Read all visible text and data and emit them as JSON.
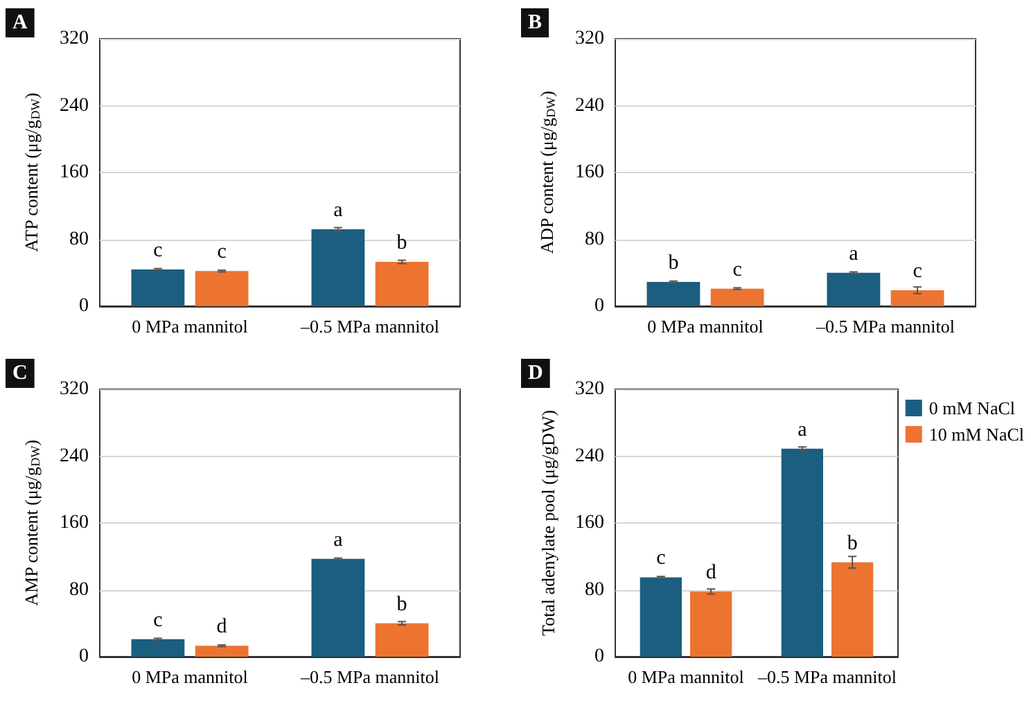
{
  "chart_data": [
    {
      "type": "bar",
      "title": "A",
      "ylabel": "ATP content (μg/g$_{DW}$)",
      "categories": [
        "0 MPa mannitol",
        "–0.5 MPa mannitol"
      ],
      "ylim": [
        0,
        320
      ],
      "yticks": [
        0,
        80,
        160,
        240,
        320
      ],
      "grid": "y",
      "legend": false,
      "series": [
        {
          "color": "#1b5e7f",
          "values": [
            44,
            92
          ],
          "errors": [
            1,
            2
          ],
          "value_labels": [
            "c",
            "a"
          ]
        },
        {
          "color": "#ec7430",
          "values": [
            42,
            53
          ],
          "errors": [
            1,
            2
          ],
          "value_labels": [
            "c",
            "b"
          ]
        }
      ]
    },
    {
      "type": "bar",
      "title": "B",
      "ylabel": "ADP content (μg/g$_{DW}$)",
      "categories": [
        "0 MPa mannitol",
        "–0.5 MPa mannitol"
      ],
      "ylim": [
        0,
        320
      ],
      "yticks": [
        0,
        80,
        160,
        240,
        320
      ],
      "grid": "y",
      "legend": false,
      "series": [
        {
          "color": "#1b5e7f",
          "values": [
            29,
            40
          ],
          "errors": [
            1,
            1
          ],
          "value_labels": [
            "b",
            "a"
          ]
        },
        {
          "color": "#ec7430",
          "values": [
            21,
            19
          ],
          "errors": [
            1,
            4
          ],
          "value_labels": [
            "c",
            "c"
          ]
        }
      ]
    },
    {
      "type": "bar",
      "title": "C",
      "ylabel": "AMP content (μg/g$_{DW}$)",
      "categories": [
        "0 MPa mannitol",
        "–0.5 MPa mannitol"
      ],
      "ylim": [
        0,
        320
      ],
      "yticks": [
        0,
        80,
        160,
        240,
        320
      ],
      "grid": "y",
      "legend": false,
      "series": [
        {
          "color": "#1b5e7f",
          "values": [
            21,
            117
          ],
          "errors": [
            1,
            1
          ],
          "value_labels": [
            "c",
            "a"
          ]
        },
        {
          "color": "#ec7430",
          "values": [
            13,
            40
          ],
          "errors": [
            1,
            2
          ],
          "value_labels": [
            "d",
            "b"
          ]
        }
      ]
    },
    {
      "type": "bar",
      "title": "D",
      "ylabel": "Total adenylate pool (μg/gDW)",
      "categories": [
        "0 MPa mannitol",
        "–0.5 MPa mannitol"
      ],
      "ylim": [
        0,
        320
      ],
      "yticks": [
        0,
        80,
        160,
        240,
        320
      ],
      "grid": "y",
      "legend": "top right",
      "series": [
        {
          "name": "0 mM NaCl",
          "color": "#1b5e7f",
          "values": [
            95,
            249
          ],
          "errors": [
            1,
            2
          ],
          "value_labels": [
            "c",
            "a"
          ]
        },
        {
          "name": "10 mM NaCl",
          "color": "#ec7430",
          "values": [
            78,
            113
          ],
          "errors": [
            3,
            7
          ],
          "value_labels": [
            "d",
            "b"
          ]
        }
      ]
    }
  ]
}
